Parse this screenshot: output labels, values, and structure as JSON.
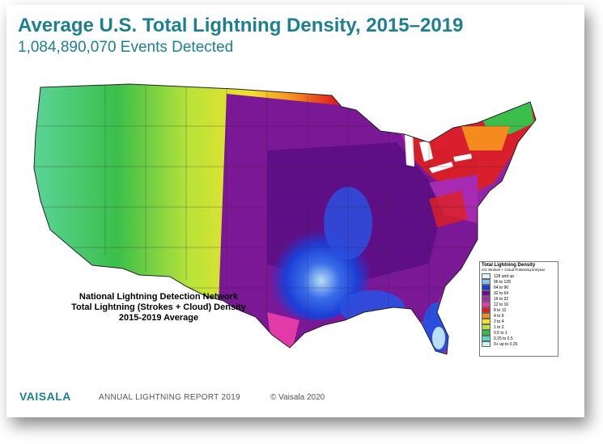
{
  "header": {
    "title": "Average U.S. Total Lightning Density, 2015–2019",
    "subtitle": "1,084,890,070 Events Detected"
  },
  "map": {
    "caption": {
      "line1": "National Lightning Detection Network",
      "line2": "Total Lightning (Strokes + Cloud) Density",
      "line3": "2015-2019 Average"
    },
    "legend": {
      "title": "Total Lightning Density",
      "subtitle": "CG Strokes + Cloud Pulses/sq km/year",
      "rows": [
        {
          "label": "128 and up",
          "color": "#e8f4fa"
        },
        {
          "label": "96     to 128",
          "color": "#7fc4ee"
        },
        {
          "label": "64     to  96",
          "color": "#1c3ed6"
        },
        {
          "label": "32     to  64",
          "color": "#6a0f8e"
        },
        {
          "label": "16     to  32",
          "color": "#a62bb0"
        },
        {
          "label": "12     to  16",
          "color": "#e23aa6"
        },
        {
          "label": "8      to  12",
          "color": "#e01f1f"
        },
        {
          "label": "4      to   8",
          "color": "#f58a1f"
        },
        {
          "label": "2      to   4",
          "color": "#f5df2a"
        },
        {
          "label": "1      to   2",
          "color": "#b8e43a"
        },
        {
          "label": "0.5    to   1",
          "color": "#2bbf4a"
        },
        {
          "label": "0.25   to 0.5",
          "color": "#5fd6c4"
        },
        {
          "label": "0+ up to 0.25",
          "color": "#c9f0f2"
        }
      ]
    }
  },
  "footer": {
    "logo": "VAISALA",
    "report": "ANNUAL LIGHTNING REPORT 2019",
    "copyright": "© Vaisala 2020"
  }
}
